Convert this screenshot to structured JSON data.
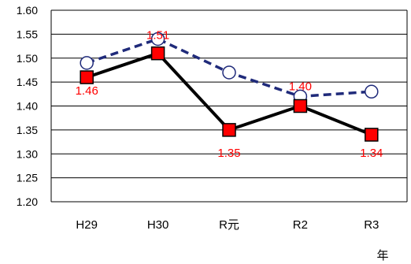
{
  "chart_data": {
    "type": "line",
    "categories": [
      "H29",
      "H30",
      "R元",
      "R2",
      "R3"
    ],
    "series": [
      {
        "name": "",
        "values": [
          1.49,
          1.54,
          1.47,
          1.42,
          1.43
        ],
        "color": "#1f2a7a",
        "line_style": "dashed",
        "marker": "circle-open"
      },
      {
        "name": "",
        "values": [
          1.46,
          1.51,
          1.35,
          1.4,
          1.34
        ],
        "color": "#000000",
        "line_style": "solid",
        "marker": "square",
        "marker_color": "#ff0000",
        "data_labels": [
          "1.46",
          "1.51",
          "1.35",
          "1.40",
          "1.34"
        ],
        "data_label_color": "#ff0000"
      }
    ],
    "ylim": [
      1.2,
      1.6
    ],
    "yticks": [
      "1.20",
      "1.25",
      "1.30",
      "1.35",
      "1.40",
      "1.45",
      "1.50",
      "1.55",
      "1.60"
    ],
    "xunit": "年",
    "grid": true,
    "legend": "none"
  }
}
